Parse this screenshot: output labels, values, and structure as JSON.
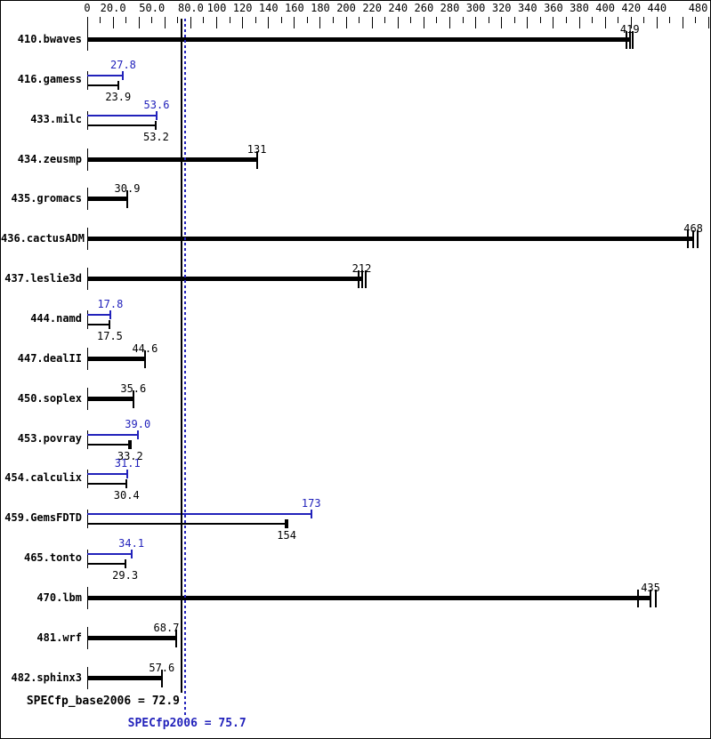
{
  "colors": {
    "base": "#000000",
    "peak": "#2222bb",
    "background": "#ffffff",
    "frame_border": "#000000"
  },
  "axis": {
    "min": 0,
    "max": 480,
    "tick_step": 10,
    "major_tick_step": 20,
    "labels": [
      {
        "value": 0,
        "text": "0"
      },
      {
        "value": 20,
        "text": "20.0"
      },
      {
        "value": 50,
        "text": "50.0"
      },
      {
        "value": 80,
        "text": "80.0"
      },
      {
        "value": 100,
        "text": "100"
      },
      {
        "value": 120,
        "text": "120"
      },
      {
        "value": 140,
        "text": "140"
      },
      {
        "value": 160,
        "text": "160"
      },
      {
        "value": 180,
        "text": "180"
      },
      {
        "value": 200,
        "text": "200"
      },
      {
        "value": 220,
        "text": "220"
      },
      {
        "value": 240,
        "text": "240"
      },
      {
        "value": 260,
        "text": "260"
      },
      {
        "value": 280,
        "text": "280"
      },
      {
        "value": 300,
        "text": "300"
      },
      {
        "value": 320,
        "text": "320"
      },
      {
        "value": 340,
        "text": "340"
      },
      {
        "value": 360,
        "text": "360"
      },
      {
        "value": 380,
        "text": "380"
      },
      {
        "value": 400,
        "text": "400"
      },
      {
        "value": 420,
        "text": "420"
      },
      {
        "value": 440,
        "text": "440"
      },
      {
        "value": 480,
        "text": "480",
        "dx": -12
      }
    ]
  },
  "benchmarks": [
    {
      "name": "410.bwaves",
      "base": 419,
      "base_label": "419",
      "peak": null,
      "peak_label": null,
      "run_mark_offsets": [
        -5,
        2
      ]
    },
    {
      "name": "416.gamess",
      "base": 23.9,
      "base_label": "23.9",
      "peak": 27.8,
      "peak_label": "27.8"
    },
    {
      "name": "433.milc",
      "base": 53.2,
      "base_label": "53.2",
      "peak": 53.6,
      "peak_label": "53.6"
    },
    {
      "name": "434.zeusmp",
      "base": 131,
      "base_label": "131",
      "peak": null,
      "peak_label": null
    },
    {
      "name": "435.gromacs",
      "base": 30.9,
      "base_label": "30.9",
      "peak": null,
      "peak_label": null
    },
    {
      "name": "436.cactusADM",
      "base": 468,
      "base_label": "468",
      "peak": null,
      "peak_label": null,
      "run_mark_offsets": [
        -7,
        4
      ]
    },
    {
      "name": "437.leslie3d",
      "base": 212,
      "base_label": "212",
      "peak": null,
      "peak_label": null,
      "run_mark_offsets": [
        -5,
        3
      ]
    },
    {
      "name": "444.namd",
      "base": 17.5,
      "base_label": "17.5",
      "peak": 17.8,
      "peak_label": "17.8"
    },
    {
      "name": "447.dealII",
      "base": 44.6,
      "base_label": "44.6",
      "peak": null,
      "peak_label": null
    },
    {
      "name": "450.soplex",
      "base": 35.6,
      "base_label": "35.6",
      "peak": null,
      "peak_label": null
    },
    {
      "name": "453.povray",
      "base": 33.2,
      "base_label": "33.2",
      "peak": 39.0,
      "peak_label": "39.0",
      "thick_cap": true
    },
    {
      "name": "454.calculix",
      "base": 30.4,
      "base_label": "30.4",
      "peak": 31.1,
      "peak_label": "31.1"
    },
    {
      "name": "459.GemsFDTD",
      "base": 154,
      "base_label": "154",
      "peak": 173,
      "peak_label": "173",
      "thick_cap": true
    },
    {
      "name": "465.tonto",
      "base": 29.3,
      "base_label": "29.3",
      "peak": 34.1,
      "peak_label": "34.1"
    },
    {
      "name": "470.lbm",
      "base": 435,
      "base_label": "435",
      "peak": null,
      "peak_label": null,
      "run_mark_offsets": [
        -15,
        5
      ]
    },
    {
      "name": "481.wrf",
      "base": 68.7,
      "base_label": "68.7",
      "peak": null,
      "peak_label": null,
      "label_dx": -11
    },
    {
      "name": "482.sphinx3",
      "base": 57.6,
      "base_label": "57.6",
      "peak": null,
      "peak_label": null
    }
  ],
  "summary": {
    "base_label": "SPECfp_base2006 = 72.9",
    "base_value": 72.9,
    "peak_label": "SPECfp2006 = 75.7",
    "peak_value": 75.7
  },
  "chart_data": {
    "type": "bar",
    "orientation": "horizontal",
    "title": "",
    "categories": [
      "410.bwaves",
      "416.gamess",
      "433.milc",
      "434.zeusmp",
      "435.gromacs",
      "436.cactusADM",
      "437.leslie3d",
      "444.namd",
      "447.dealII",
      "450.soplex",
      "453.povray",
      "454.calculix",
      "459.GemsFDTD",
      "465.tonto",
      "470.lbm",
      "481.wrf",
      "482.sphinx3"
    ],
    "series": [
      {
        "name": "SPECfp2006 (peak)",
        "color": "#2222bb",
        "values": [
          null,
          27.8,
          53.6,
          null,
          null,
          null,
          null,
          17.8,
          null,
          null,
          39.0,
          31.1,
          173,
          34.1,
          null,
          null,
          null
        ]
      },
      {
        "name": "SPECfp_base2006 (base)",
        "color": "#000000",
        "values": [
          419,
          23.9,
          53.2,
          131,
          30.9,
          468,
          212,
          17.5,
          44.6,
          35.6,
          33.2,
          30.4,
          154,
          29.3,
          435,
          68.7,
          57.6
        ]
      }
    ],
    "xlim": [
      0,
      480
    ],
    "x_tick_labels": [
      "0",
      "20.0",
      "50.0",
      "80.0",
      "100",
      "120",
      "140",
      "160",
      "180",
      "200",
      "220",
      "240",
      "260",
      "280",
      "300",
      "320",
      "340",
      "360",
      "380",
      "400",
      "420",
      "440",
      "480"
    ],
    "x_axis_position": "top",
    "grid": false,
    "legend": false,
    "reference_lines": [
      {
        "label": "SPECfp_base2006 = 72.9",
        "value": 72.9,
        "color": "#000000",
        "style": "solid"
      },
      {
        "label": "SPECfp2006 = 75.7",
        "value": 75.7,
        "color": "#2222bb",
        "style": "dotted"
      }
    ]
  }
}
